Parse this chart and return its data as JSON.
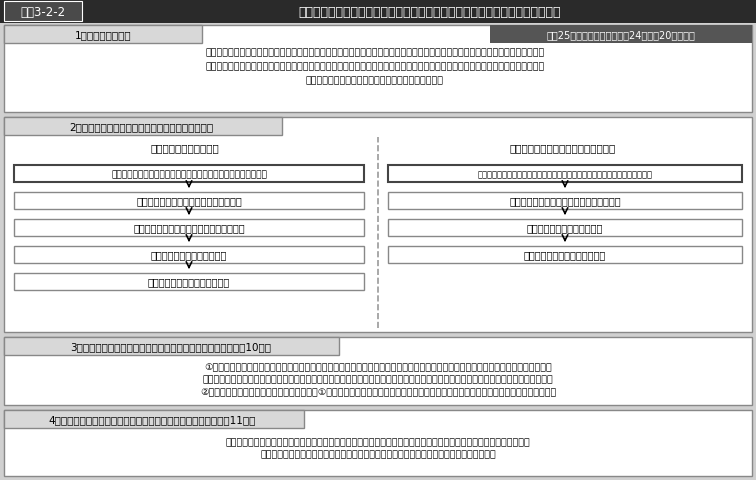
{
  "title_label": "図表3-2-2",
  "title_text": "国等による障害者就労施設等からの物品等の調達の推進等に関する法律の概要",
  "section1_title": "1．目的（第１条）",
  "section1_date": "平成25年４月１日施行（平成24年６月20日成立）",
  "section1_body1": "　障害者就労施設、在宅就業障害者及び在宅就業支援団体（以下「障害者就労施設等」という。）の受注の機会を確保するために必",
  "section1_body2": "要な事項等を定めることにより、障害者就労施設等が供給する物品等に対する需要の増進等を図り、もって障害者就労施設で就労す",
  "section1_body3": "る障害者、在宅就業障害者等の自立の促進に資する。",
  "section2_title": "2．国等の責務及び調達の推進（第３条〜第９条）",
  "col_left_title": "＜国・独立行政法人等＞",
  "col_right_title": "＜地方公共団体・地方独立行政法人＞",
  "left_box0": "優先的に障害者就労施設等から物品等を調達するよう努める責務",
  "left_box1": "基本方針の策定・公表（厚生労働大臣）",
  "left_box2": "調達方針の策定・公表（各省各庁の長等）",
  "left_box3": "調達方針に即した調達の実施",
  "left_box4": "調達実績の取りまとめ・公表等",
  "right_box0": "障害者就労施設等の受注機会の拡大を図るための措置を講ずるよう努める責務",
  "right_box1": "調達方針の策定・公表（都道府県の長等）",
  "right_box2": "調達方針に即した調達の実施",
  "right_box3": "調達実績の取りまとめ・公表等",
  "section3_title": "3．公契約における障害者の就業を促進するための措置等（第10条）",
  "section3_item1a": "①　国及び独立行政法人等は、公契約について、競争参加資格を定めるに当たって法定雇用率を満たしていること又は障害者就労施設",
  "section3_item1b": "　等から相当程度の物品等を調達していることに配慮する等障害者の就業を促進するために必要な措置を講ずるよう努めるものとする。",
  "section3_item2": "②　地方公共団体及び地方独立行政法人は、①による国及び独立行政法人等の措置に準じて必要な措置を講ずるよう努めるものとする。",
  "section4_title": "4．障害者就労施設等の供給する物品等に関する情報の提供（第11条）",
  "section4_body1": "　障害者就労施設等は、単独で又は相互に連携して若しくは共同して、購入者等に対し、その物品等に関する情報を提",
  "section4_body2": "供するよう努めるとともに、当該物品等の質の向上及び供給の円滑化に努めるものとする。",
  "header_dark": "#2a2a2a",
  "label_box_bg": "#4a4a4a",
  "section_title_bg": "#d8d8d8",
  "date_box_bg": "#555555",
  "outer_bg": "#d0d0d0",
  "box_border": "#888888",
  "special_box_border": "#444444",
  "white": "#ffffff",
  "black": "#000000"
}
